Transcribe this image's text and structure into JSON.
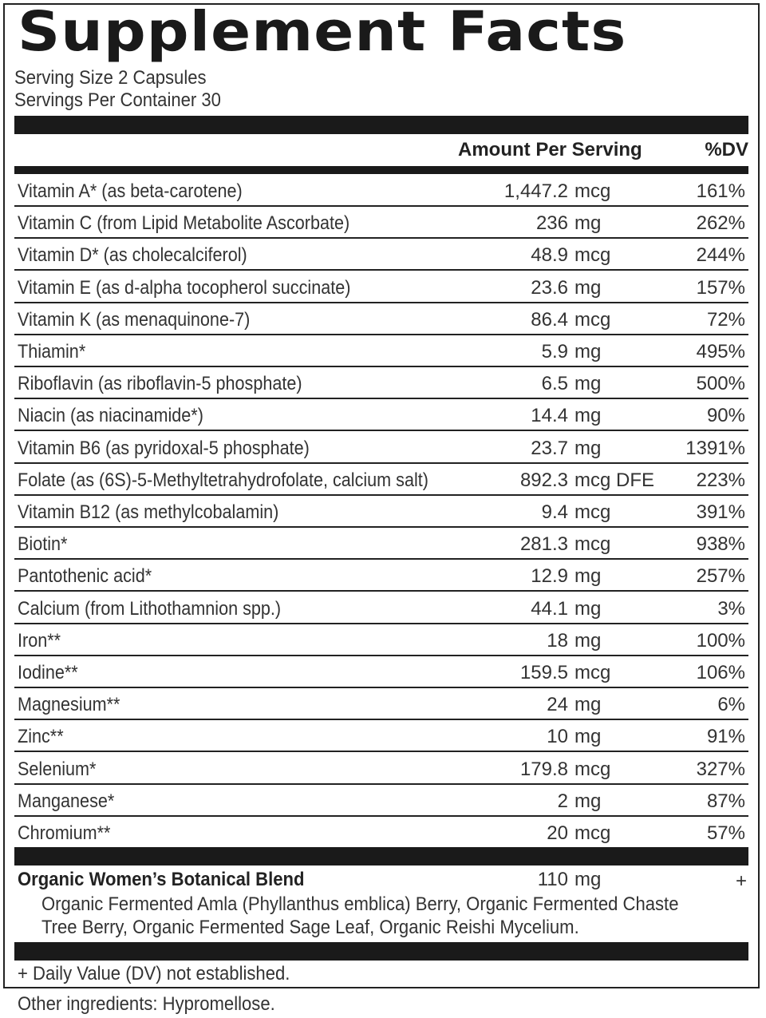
{
  "title": "Supplement Facts",
  "serving_size": "Serving Size 2 Capsules",
  "servings_per_container": "Servings Per Container 30",
  "headers": {
    "amount": "Amount Per Serving",
    "dv": "%DV"
  },
  "rows": [
    {
      "name": "Vitamin A* (as beta-carotene)",
      "amount": "1,447.2",
      "unit": "mcg",
      "dv": "161%"
    },
    {
      "name": "Vitamin C (from Lipid Metabolite Ascorbate)",
      "amount": "236",
      "unit": "mg",
      "dv": "262%"
    },
    {
      "name": "Vitamin D* (as cholecalciferol)",
      "amount": "48.9",
      "unit": "mcg",
      "dv": "244%"
    },
    {
      "name": "Vitamin E (as d-alpha tocopherol succinate)",
      "amount": "23.6",
      "unit": "mg",
      "dv": "157%"
    },
    {
      "name": "Vitamin K (as menaquinone-7)",
      "amount": "86.4",
      "unit": "mcg",
      "dv": "72%"
    },
    {
      "name": "Thiamin*",
      "amount": "5.9",
      "unit": "mg",
      "dv": "495%"
    },
    {
      "name": "Riboflavin (as riboflavin-5 phosphate)",
      "amount": "6.5",
      "unit": "mg",
      "dv": "500%"
    },
    {
      "name": "Niacin (as niacinamide*)",
      "amount": "14.4",
      "unit": "mg",
      "dv": "90%"
    },
    {
      "name": "Vitamin B6 (as pyridoxal-5 phosphate)",
      "amount": "23.7",
      "unit": "mg",
      "dv": "1391%"
    },
    {
      "name": "Folate (as (6S)-5-Methyltetrahydrofolate, calcium salt)",
      "amount": "892.3",
      "unit": "mcg DFE",
      "dv": "223%"
    },
    {
      "name": "Vitamin B12 (as methylcobalamin)",
      "amount": "9.4",
      "unit": "mcg",
      "dv": "391%"
    },
    {
      "name": "Biotin*",
      "amount": "281.3",
      "unit": "mcg",
      "dv": "938%"
    },
    {
      "name": "Pantothenic acid*",
      "amount": "12.9",
      "unit": "mg",
      "dv": "257%"
    },
    {
      "name": "Calcium (from Lithothamnion spp.)",
      "amount": "44.1",
      "unit": "mg",
      "dv": "3%"
    },
    {
      "name": "Iron**",
      "amount": "18",
      "unit": "mg",
      "dv": "100%"
    },
    {
      "name": "Iodine**",
      "amount": "159.5",
      "unit": "mcg",
      "dv": "106%"
    },
    {
      "name": "Magnesium**",
      "amount": "24",
      "unit": "mg",
      "dv": "6%"
    },
    {
      "name": "Zinc**",
      "amount": "10",
      "unit": "mg",
      "dv": "91%"
    },
    {
      "name": "Selenium*",
      "amount": "179.8",
      "unit": "mcg",
      "dv": "327%"
    },
    {
      "name": "Manganese*",
      "amount": "2",
      "unit": "mg",
      "dv": "87%"
    },
    {
      "name": "Chromium**",
      "amount": "20",
      "unit": "mcg",
      "dv": "57%"
    }
  ],
  "blend": {
    "name": "Organic Women’s Botanical Blend",
    "amount": "110",
    "unit": "mg",
    "dv": "+",
    "ingredients": "Organic Fermented Amla (Phyllanthus emblica) Berry, Organic Fermented Chaste Tree Berry, Organic Fermented Sage Leaf, Organic Reishi Mycelium."
  },
  "footnote": "+ Daily Value (DV) not established.",
  "other_ingredients": "Other ingredients: Hypromellose."
}
